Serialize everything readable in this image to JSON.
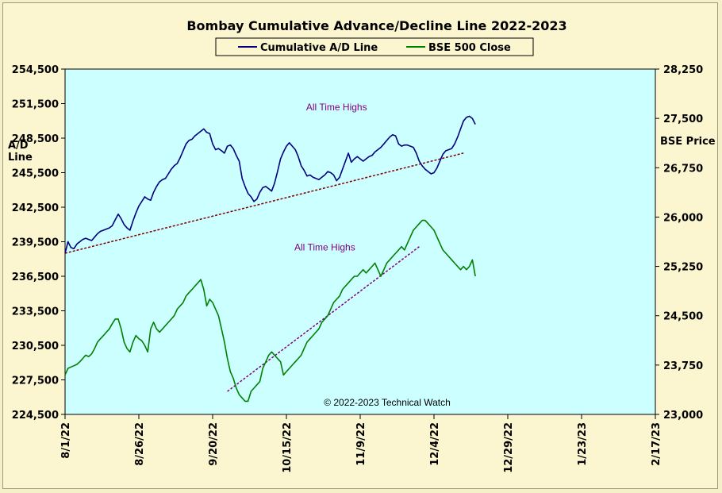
{
  "chart_data": {
    "type": "line",
    "title": "Bombay Cumulative Advance/Decline Line 2022-2023",
    "y_left_label": [
      "A/D",
      "Line"
    ],
    "y_right_label": "BSE Price",
    "y_left_range": [
      224500,
      254500
    ],
    "y_left_ticks": [
      "254,500",
      "251,500",
      "248,500",
      "245,500",
      "242,500",
      "239,500",
      "236,500",
      "233,500",
      "230,500",
      "227,500",
      "224,500"
    ],
    "y_right_range": [
      23000,
      28250
    ],
    "y_right_ticks": [
      "28,250",
      "27,500",
      "26,750",
      "26,000",
      "25,250",
      "24,500",
      "23,750",
      "23,000"
    ],
    "x_ticks": [
      "8/1/22",
      "8/26/22",
      "9/20/22",
      "10/15/22",
      "11/9/22",
      "12/4/22",
      "12/29/22",
      "1/23/23",
      "2/17/23"
    ],
    "x_range_days": [
      0,
      200
    ],
    "legend_position": "top-center",
    "colors": {
      "plot_bg": "#ccffff",
      "ad_line": "#000080",
      "bse_line": "#008000",
      "trendline": "#800000",
      "trendline_bse": "#800080",
      "annotation": "#800080"
    },
    "series": [
      {
        "name": "Cumulative A/D Line",
        "axis": "left",
        "color": "#000080",
        "x": [
          0,
          1,
          2,
          3,
          4,
          5,
          6,
          7,
          8,
          9,
          10,
          11,
          12,
          13,
          14,
          15,
          16,
          17,
          18,
          19,
          20,
          21,
          22,
          23,
          24,
          25,
          26,
          27,
          28,
          29,
          30,
          31,
          32,
          33,
          34,
          35,
          36,
          37,
          38,
          39,
          40,
          41,
          42,
          43,
          44,
          45,
          46,
          47,
          48,
          49,
          50,
          51,
          52,
          53,
          54,
          55,
          56,
          57,
          58,
          59,
          60,
          61,
          62,
          63,
          64,
          65,
          66,
          67,
          68,
          69,
          70,
          71,
          72,
          73,
          74,
          75,
          76,
          77,
          78,
          79,
          80,
          81,
          82,
          83,
          84,
          85,
          86,
          87,
          88,
          89,
          90,
          91,
          92,
          93,
          94,
          95,
          96,
          97,
          98,
          99,
          100,
          101,
          102,
          103,
          104,
          105,
          106,
          107,
          108,
          109,
          110,
          111,
          112,
          113,
          114,
          115,
          116,
          117,
          118,
          119,
          120,
          121,
          122,
          123,
          124,
          125,
          126,
          127,
          128,
          129,
          130,
          131,
          132,
          133,
          134,
          135,
          136,
          137,
          138,
          139
        ],
        "y": [
          238500,
          239500,
          239000,
          238900,
          239300,
          239500,
          239700,
          239800,
          239700,
          239600,
          239900,
          240200,
          240400,
          240500,
          240600,
          240700,
          240900,
          241400,
          241900,
          241500,
          241000,
          240700,
          240500,
          241300,
          242000,
          242600,
          243000,
          243400,
          243200,
          243100,
          243800,
          244300,
          244700,
          244900,
          245000,
          245400,
          245800,
          246100,
          246300,
          246800,
          247400,
          248000,
          248300,
          248400,
          248700,
          248900,
          249100,
          249300,
          249000,
          248900,
          248000,
          247500,
          247600,
          247400,
          247200,
          247800,
          247900,
          247600,
          247000,
          246500,
          245000,
          244300,
          243700,
          243400,
          243000,
          243200,
          243800,
          244200,
          244300,
          244100,
          243900,
          244600,
          245600,
          246700,
          247300,
          247800,
          248100,
          247800,
          247500,
          246900,
          246100,
          245700,
          245200,
          245300,
          245100,
          245000,
          244900,
          245100,
          245300,
          245600,
          245500,
          245300,
          244800,
          245100,
          245800,
          246500,
          247200,
          246400,
          246700,
          246900,
          246700,
          246500,
          246700,
          246900,
          247000,
          247300,
          247500,
          247700,
          248000,
          248300,
          248600,
          248800,
          248700,
          248000,
          247800,
          247900,
          247900,
          247800,
          247700,
          247200,
          246500,
          246100,
          245800,
          245600,
          245400,
          245500,
          245900,
          246500,
          247100,
          247400,
          247500,
          247600,
          248000,
          248600,
          249300,
          250000,
          250300,
          250400,
          250200,
          249700
        ]
      },
      {
        "name": "BSE 500 Close",
        "axis": "right",
        "color": "#008000",
        "x": [
          0,
          1,
          2,
          3,
          4,
          5,
          6,
          7,
          8,
          9,
          10,
          11,
          12,
          13,
          14,
          15,
          16,
          17,
          18,
          19,
          20,
          21,
          22,
          23,
          24,
          25,
          26,
          27,
          28,
          29,
          30,
          31,
          32,
          33,
          34,
          35,
          36,
          37,
          38,
          39,
          40,
          41,
          42,
          43,
          44,
          45,
          46,
          47,
          48,
          49,
          50,
          51,
          52,
          53,
          54,
          55,
          56,
          57,
          58,
          59,
          60,
          61,
          62,
          63,
          64,
          65,
          66,
          67,
          68,
          69,
          70,
          71,
          72,
          73,
          74,
          75,
          76,
          77,
          78,
          79,
          80,
          81,
          82,
          83,
          84,
          85,
          86,
          87,
          88,
          89,
          90,
          91,
          92,
          93,
          94,
          95,
          96,
          97,
          98,
          99,
          100,
          101,
          102,
          103,
          104,
          105,
          106,
          107,
          108,
          109,
          110,
          111,
          112,
          113,
          114,
          115,
          116,
          117,
          118,
          119,
          120,
          121,
          122,
          123,
          124,
          125,
          126,
          127,
          128,
          129,
          130,
          131,
          132,
          133,
          134,
          135,
          136,
          137,
          138,
          139
        ],
        "y": [
          23600,
          23700,
          23720,
          23740,
          23760,
          23800,
          23850,
          23900,
          23880,
          23920,
          24000,
          24100,
          24150,
          24200,
          24250,
          24300,
          24380,
          24450,
          24450,
          24300,
          24100,
          24000,
          23950,
          24100,
          24200,
          24150,
          24120,
          24050,
          23950,
          24300,
          24400,
          24300,
          24250,
          24300,
          24350,
          24400,
          24450,
          24500,
          24600,
          24650,
          24700,
          24800,
          24850,
          24900,
          24950,
          25000,
          25050,
          24900,
          24650,
          24750,
          24700,
          24600,
          24500,
          24300,
          24100,
          23850,
          23650,
          23550,
          23400,
          23300,
          23250,
          23200,
          23200,
          23350,
          23400,
          23450,
          23500,
          23700,
          23800,
          23900,
          23950,
          23900,
          23850,
          23800,
          23600,
          23650,
          23700,
          23750,
          23800,
          23850,
          23900,
          24000,
          24100,
          24150,
          24200,
          24250,
          24300,
          24400,
          24450,
          24500,
          24600,
          24700,
          24750,
          24800,
          24900,
          24950,
          25000,
          25050,
          25100,
          25100,
          25150,
          25200,
          25150,
          25200,
          25250,
          25300,
          25200,
          25100,
          25200,
          25300,
          25350,
          25400,
          25450,
          25500,
          25550,
          25500,
          25600,
          25700,
          25800,
          25850,
          25900,
          25950,
          25950,
          25900,
          25850,
          25800,
          25700,
          25600,
          25500,
          25450,
          25400,
          25350,
          25300,
          25250,
          25200,
          25250,
          25200,
          25250,
          25350,
          25100
        ]
      }
    ],
    "trendlines": [
      {
        "axis": "left",
        "color": "#800000",
        "x": [
          0,
          135
        ],
        "y": [
          238500,
          247200
        ]
      },
      {
        "axis": "right",
        "color": "#800080",
        "x": [
          55,
          120
        ],
        "y": [
          23350,
          25550
        ]
      }
    ],
    "annotations": [
      {
        "text": "All Time Highs",
        "x_day": 92,
        "axis": "left",
        "y": 250900
      },
      {
        "text": "All Time Highs",
        "x_day": 88,
        "axis": "right",
        "y": 25490
      }
    ],
    "copyright": "© 2022-2023  Technical Watch"
  }
}
